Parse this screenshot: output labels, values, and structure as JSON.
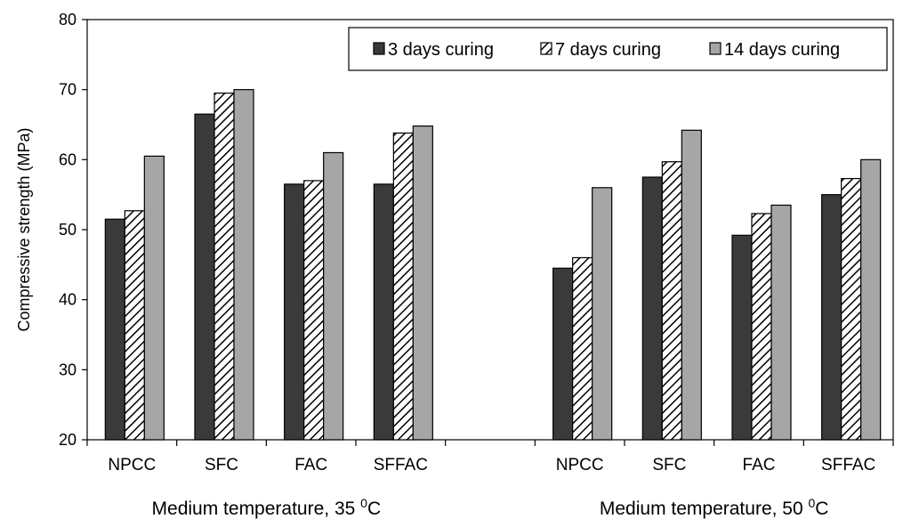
{
  "chart_data": {
    "type": "bar",
    "ylabel": "Compressive strength (MPa)",
    "ylim": [
      20,
      80
    ],
    "yticks": [
      20,
      30,
      40,
      50,
      60,
      70,
      80
    ],
    "grid": false,
    "legend_position": "top-right",
    "series": [
      {
        "name": "3 days curing",
        "pattern": "solid-dark",
        "color": "#3a3a3a"
      },
      {
        "name": "7 days curing",
        "pattern": "hatched",
        "color": "#ffffff"
      },
      {
        "name": "14 days curing",
        "pattern": "solid-light",
        "color": "#a6a6a6"
      }
    ],
    "groups": [
      {
        "label": "Medium temperature, 35",
        "superscript": "0",
        "unit": "C",
        "categories": [
          "NPCC",
          "SFC",
          "FAC",
          "SFFAC"
        ],
        "values": [
          [
            51.5,
            52.7,
            60.5
          ],
          [
            66.5,
            69.5,
            70.0
          ],
          [
            56.5,
            57.0,
            61.0
          ],
          [
            56.5,
            63.8,
            64.8
          ]
        ]
      },
      {
        "label": "Medium temperature, 50",
        "superscript": "0",
        "unit": "C",
        "categories": [
          "NPCC",
          "SFC",
          "FAC",
          "SFFAC"
        ],
        "values": [
          [
            44.5,
            46.0,
            56.0
          ],
          [
            57.5,
            59.7,
            64.2
          ],
          [
            49.2,
            52.3,
            53.5
          ],
          [
            55.0,
            57.3,
            60.0
          ]
        ]
      }
    ]
  }
}
